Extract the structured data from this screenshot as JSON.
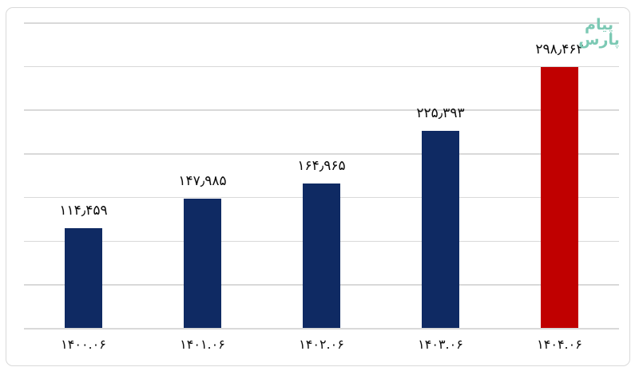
{
  "chart_data": {
    "type": "bar",
    "title": "",
    "xlabel": "",
    "ylabel": "",
    "categories": [
      "۱۴۰۰.۰۶",
      "۱۴۰۱.۰۶",
      "۱۴۰۲.۰۶",
      "۱۴۰۳.۰۶",
      "۱۴۰۴.۰۶"
    ],
    "values": [
      114459,
      147985,
      164965,
      225393,
      298462
    ],
    "value_labels": [
      "۱۱۴٫۴۵۹",
      "۱۴۷٫۹۸۵",
      "۱۶۴٫۹۶۵",
      "۲۲۵٫۳۹۳",
      "۲۹۸٫۴۶۲"
    ],
    "bar_colors": [
      "#0f2a63",
      "#0f2a63",
      "#0f2a63",
      "#0f2a63",
      "#c00000"
    ],
    "ylim": [
      0,
      350000
    ],
    "grid_step": 50000,
    "grid": true,
    "legend": false
  },
  "watermark": {
    "line1": "پیام",
    "line2": "پارس",
    "color": "#7cc9b4"
  },
  "colors": {
    "gridline": "#d9d9d9",
    "border": "#d9d9d9",
    "label_text": "#0d0d0d"
  }
}
